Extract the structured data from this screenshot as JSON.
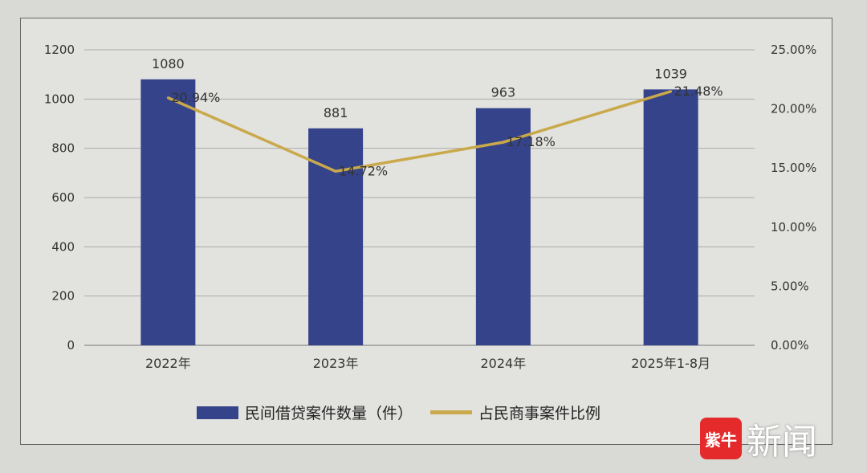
{
  "chart_data": {
    "type": "bar+line",
    "categories": [
      "2022年",
      "2023年",
      "2024年",
      "2025年1-8月"
    ],
    "series": [
      {
        "name": "民间借贷案件数量（件）",
        "type": "bar",
        "axis": "left",
        "values": [
          1080,
          881,
          963,
          1039
        ],
        "labels": [
          "1080",
          "881",
          "963",
          "1039"
        ],
        "color": "#34438a"
      },
      {
        "name": "占民商事案件比例",
        "type": "line",
        "axis": "right",
        "values": [
          20.94,
          14.72,
          17.18,
          21.48
        ],
        "labels": [
          "20.94%",
          "14.72%",
          "17.18%",
          "21.48%"
        ],
        "color": "#c9a94a"
      }
    ],
    "left_axis": {
      "ylim": [
        0,
        1200
      ],
      "ticks": [
        "0",
        "200",
        "400",
        "600",
        "800",
        "1000",
        "1200"
      ]
    },
    "right_axis": {
      "ylim": [
        0,
        25
      ],
      "ticks": [
        "0.00%",
        "5.00%",
        "10.00%",
        "15.00%",
        "20.00%",
        "25.00%"
      ]
    },
    "legend_position": "bottom"
  },
  "watermark": {
    "logo": "紫牛",
    "text": "新闻"
  }
}
